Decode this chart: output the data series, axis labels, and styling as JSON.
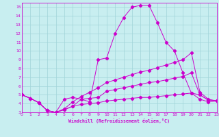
{
  "xlabel": "Windchill (Refroidissement éolien,°C)",
  "bg_color": "#c8eef0",
  "grid_color": "#a0d4d8",
  "line_color": "#cc00cc",
  "xlim": [
    0,
    23
  ],
  "ylim": [
    3,
    15.5
  ],
  "xticks": [
    0,
    1,
    2,
    3,
    4,
    5,
    6,
    7,
    8,
    9,
    10,
    11,
    12,
    13,
    14,
    15,
    16,
    17,
    18,
    19,
    20,
    21,
    22,
    23
  ],
  "yticks": [
    3,
    4,
    5,
    6,
    7,
    8,
    9,
    10,
    11,
    12,
    13,
    14,
    15
  ],
  "line1_x": [
    0,
    1,
    2,
    3,
    4,
    5,
    6,
    7,
    8,
    9,
    10,
    11,
    12,
    13,
    14,
    15,
    16,
    17,
    18,
    19,
    20,
    21,
    22,
    23
  ],
  "line1_y": [
    5.0,
    4.6,
    4.1,
    3.2,
    3.0,
    4.5,
    4.7,
    4.5,
    4.2,
    9.0,
    9.2,
    12.0,
    13.8,
    15.0,
    15.2,
    15.2,
    13.2,
    11.0,
    10.0,
    7.5,
    5.2,
    4.5,
    4.2,
    4.3
  ],
  "line2_x": [
    0,
    1,
    2,
    3,
    4,
    5,
    6,
    7,
    8,
    9,
    10,
    11,
    12,
    13,
    14,
    15,
    16,
    17,
    18,
    19,
    20,
    21,
    22,
    23
  ],
  "line2_y": [
    5.0,
    4.6,
    4.1,
    3.2,
    3.0,
    3.4,
    4.2,
    4.8,
    5.3,
    5.8,
    6.4,
    6.7,
    7.0,
    7.3,
    7.6,
    7.8,
    8.1,
    8.4,
    8.7,
    9.0,
    9.8,
    5.3,
    4.5,
    4.3
  ],
  "line3_x": [
    0,
    1,
    2,
    3,
    4,
    5,
    6,
    7,
    8,
    9,
    10,
    11,
    12,
    13,
    14,
    15,
    16,
    17,
    18,
    19,
    20,
    21,
    22,
    23
  ],
  "line3_y": [
    5.0,
    4.6,
    4.1,
    3.2,
    3.0,
    3.3,
    3.7,
    4.5,
    4.6,
    4.7,
    5.4,
    5.6,
    5.8,
    6.0,
    6.2,
    6.4,
    6.5,
    6.7,
    6.9,
    7.1,
    7.5,
    5.0,
    4.4,
    4.3
  ],
  "line4_x": [
    0,
    1,
    2,
    3,
    4,
    5,
    6,
    7,
    8,
    9,
    10,
    11,
    12,
    13,
    14,
    15,
    16,
    17,
    18,
    19,
    20,
    21,
    22,
    23
  ],
  "line4_y": [
    5.0,
    4.6,
    4.1,
    3.2,
    3.0,
    3.3,
    3.7,
    3.9,
    4.0,
    4.1,
    4.3,
    4.4,
    4.5,
    4.6,
    4.7,
    4.7,
    4.8,
    4.9,
    5.0,
    5.1,
    5.2,
    5.0,
    4.4,
    4.3
  ]
}
